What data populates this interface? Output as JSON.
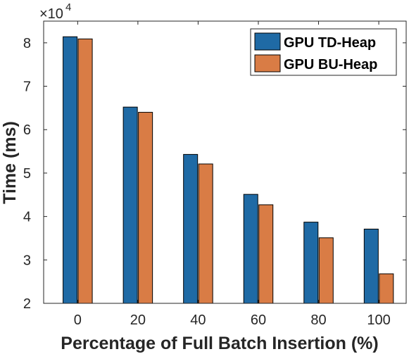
{
  "chart_data": {
    "type": "bar",
    "title": "",
    "xlabel": "Percentage of Full Batch Insertion (%)",
    "ylabel": "Time (ms)",
    "y_multiplier_label": "×10",
    "y_multiplier_exponent": "4",
    "categories": [
      "0",
      "20",
      "40",
      "60",
      "80",
      "100"
    ],
    "series": [
      {
        "name": "GPU TD-Heap",
        "color": "#1f6aa5",
        "values": [
          8.14,
          6.52,
          5.43,
          4.51,
          3.87,
          3.71
        ]
      },
      {
        "name": "GPU BU-Heap",
        "color": "#d97c45",
        "values": [
          8.09,
          6.4,
          5.21,
          4.27,
          3.51,
          2.68
        ]
      }
    ],
    "ylim": [
      2,
      8.5
    ],
    "yticks": [
      "2",
      "3",
      "4",
      "5",
      "6",
      "7",
      "8"
    ],
    "grid": false,
    "legend_position": "top-right"
  }
}
